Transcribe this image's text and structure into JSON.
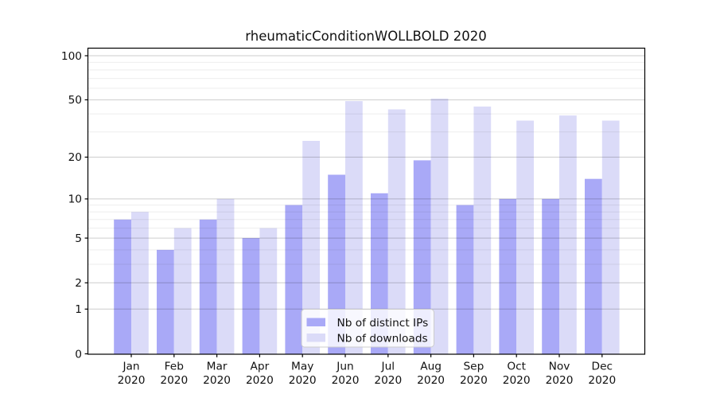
{
  "title": "rheumaticConditionWOLLBOLD 2020",
  "colors": {
    "distinct_ips_bar": "#a9a9f7",
    "downloads_bar": "#dbdbf8",
    "spine": "#000000",
    "grid_major": "rgba(0,0,0,0.20)",
    "grid_minor": "rgba(0,0,0,0.07)",
    "legend_border": "#cccccc",
    "legend_bg": "rgba(255,255,255,0.8)",
    "text": "#111111"
  },
  "legend": {
    "items": [
      {
        "label": "Nb of distinct IPs"
      },
      {
        "label": "Nb of downloads"
      }
    ]
  },
  "chart_data": {
    "type": "bar",
    "title": "rheumaticConditionWOLLBOLD 2020",
    "categories": [
      "Jan 2020",
      "Feb 2020",
      "Mar 2020",
      "Apr 2020",
      "May 2020",
      "Jun 2020",
      "Jul 2020",
      "Aug 2020",
      "Sep 2020",
      "Oct 2020",
      "Nov 2020",
      "Dec 2020"
    ],
    "series": [
      {
        "name": "Nb of distinct IPs",
        "color": "#a9a9f7",
        "values": [
          7,
          4,
          7,
          5,
          9,
          15,
          11,
          19,
          9,
          10,
          10,
          14
        ]
      },
      {
        "name": "Nb of downloads",
        "color": "#dbdbf8",
        "values": [
          8,
          6,
          10,
          6,
          26,
          49,
          43,
          51,
          45,
          36,
          39,
          36
        ]
      }
    ],
    "xlabel": "",
    "ylabel": "",
    "y_scale": "symlog (y = ln(1+v))",
    "y_major_ticks": [
      0,
      1,
      2,
      5,
      10,
      20,
      50,
      100
    ],
    "y_minor_ticks": [
      3,
      4,
      6,
      7,
      8,
      9,
      30,
      40,
      60,
      70,
      80,
      90
    ],
    "ylim": [
      0,
      112
    ],
    "grid": "on",
    "legend_position": "lower center"
  }
}
